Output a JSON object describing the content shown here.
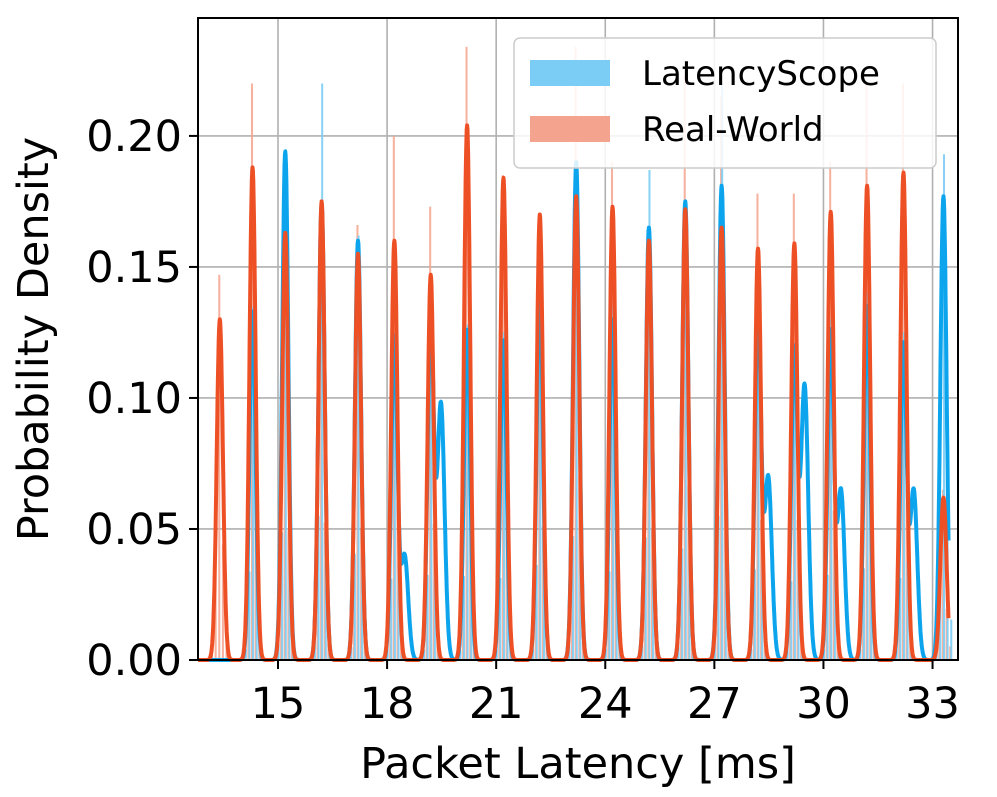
{
  "chart_data": {
    "type": "histogram+kde",
    "xlabel": "Packet Latency [ms]",
    "ylabel": "Probability Density",
    "xlim": [
      12.8,
      33.7
    ],
    "ylim": [
      0,
      0.245
    ],
    "xticks": [
      15,
      18,
      21,
      24,
      27,
      30,
      33
    ],
    "xtick_labels": [
      "15",
      "18",
      "21",
      "24",
      "27",
      "30",
      "33"
    ],
    "yticks": [
      0.0,
      0.05,
      0.1,
      0.15,
      0.2
    ],
    "ytick_labels": [
      "0.00",
      "0.05",
      "0.10",
      "0.15",
      "0.20"
    ],
    "grid": true,
    "legend_position": "top-right",
    "peak_centers": [
      13.4,
      14.3,
      15.2,
      16.2,
      17.2,
      18.2,
      19.2,
      20.2,
      21.2,
      22.2,
      23.2,
      24.2,
      25.2,
      26.2,
      27.2,
      28.2,
      29.2,
      30.2,
      31.2,
      32.2,
      33.3
    ],
    "series": [
      {
        "name": "LatencyScope",
        "color": "#0ca4ec",
        "bar_color": "#7ccdf5",
        "kde_peaks": [
          0.0,
          0.133,
          0.194,
          0.174,
          0.16,
          0.123,
          0.13,
          0.126,
          0.122,
          0.143,
          0.19,
          0.13,
          0.165,
          0.175,
          0.181,
          0.135,
          0.118,
          0.125,
          0.135,
          0.12,
          0.177
        ],
        "secondary_peaks": [
          0.0,
          0.0,
          0.0,
          0.0,
          0.0,
          0.04,
          0.098,
          0.0,
          0.0,
          0.0,
          0.0,
          0.0,
          0.0,
          0.0,
          0.0,
          0.07,
          0.105,
          0.065,
          0.0,
          0.065,
          0.0
        ],
        "bar_peaks": [
          0.0,
          0.135,
          0.195,
          0.22,
          0.162,
          0.124,
          0.13,
          0.128,
          0.125,
          0.145,
          0.189,
          0.135,
          0.187,
          0.17,
          0.22,
          0.138,
          0.12,
          0.13,
          0.14,
          0.125,
          0.193
        ]
      },
      {
        "name": "Real-World",
        "color": "#ee5025",
        "bar_color": "#f4a48e",
        "kde_peaks": [
          0.13,
          0.188,
          0.163,
          0.175,
          0.155,
          0.16,
          0.147,
          0.204,
          0.184,
          0.17,
          0.177,
          0.173,
          0.16,
          0.172,
          0.165,
          0.157,
          0.159,
          0.171,
          0.181,
          0.186,
          0.062
        ],
        "bar_peaks": [
          0.147,
          0.22,
          0.165,
          0.175,
          0.166,
          0.2,
          0.173,
          0.234,
          0.185,
          0.17,
          0.234,
          0.19,
          0.165,
          0.223,
          0.215,
          0.178,
          0.178,
          0.19,
          0.22,
          0.22,
          0.065
        ]
      }
    ]
  }
}
